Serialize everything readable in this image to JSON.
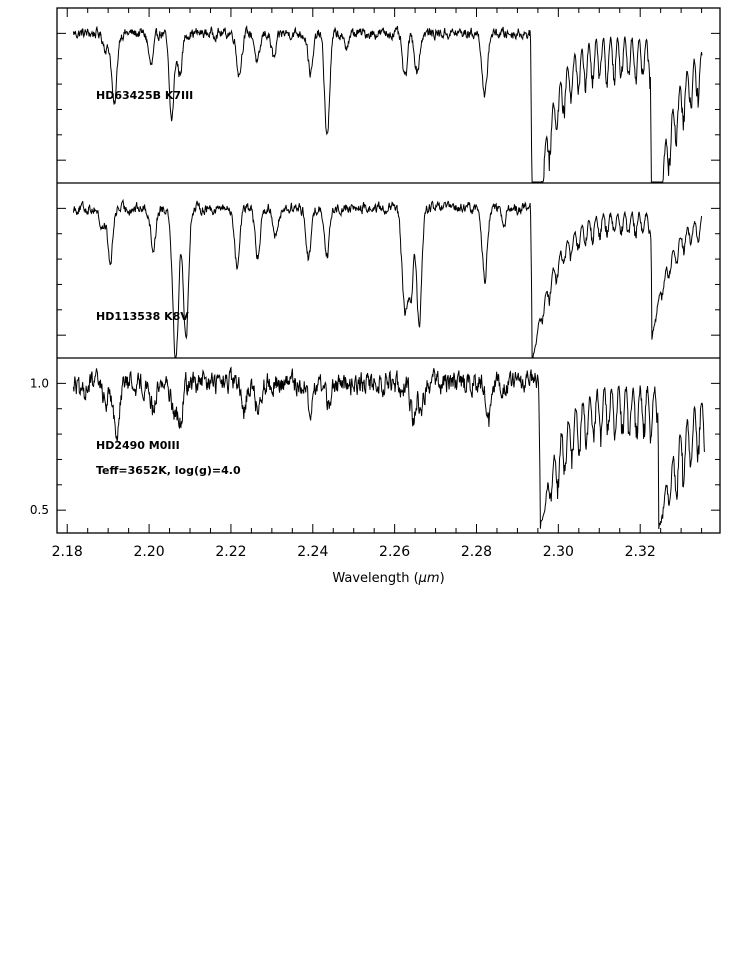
{
  "chart_data": {
    "type": "line",
    "x_axis": {
      "label": "Wavelength (μm)",
      "label_prefix": "Wavelength (",
      "label_unit": "μm",
      "label_suffix": ")",
      "range": [
        2.1775,
        2.3395
      ],
      "ticks": [
        2.18,
        2.2,
        2.22,
        2.24,
        2.26,
        2.28,
        2.3,
        2.32
      ],
      "tick_labels": [
        "2.18",
        "2.20",
        "2.22",
        "2.24",
        "2.26",
        "2.28",
        "2.30",
        "2.32"
      ]
    },
    "y_axis": {
      "range": [
        0.41,
        1.1
      ],
      "tick_values": [
        0.5,
        1.0
      ],
      "tick_labels": [
        "0.5",
        "1.0"
      ]
    },
    "panels": [
      {
        "name": "HD63425B K7III",
        "label": "HD63425B  K7III",
        "ylim": [
          0.41,
          1.1
        ],
        "continuum_fluctuation": 0.022,
        "continuum_tilt": 0.0,
        "tail_fluctuation": 0.016,
        "absorption_lines": [
          {
            "x": 2.1895,
            "depth": 0.06,
            "width": 0.0007
          },
          {
            "x": 2.1915,
            "depth": 0.29,
            "width": 0.0006
          },
          {
            "x": 2.2005,
            "depth": 0.13,
            "width": 0.0006
          },
          {
            "x": 2.2055,
            "depth": 0.34,
            "width": 0.0006
          },
          {
            "x": 2.2075,
            "depth": 0.16,
            "width": 0.0006
          },
          {
            "x": 2.222,
            "depth": 0.16,
            "width": 0.0006
          },
          {
            "x": 2.2265,
            "depth": 0.12,
            "width": 0.0006
          },
          {
            "x": 2.2305,
            "depth": 0.1,
            "width": 0.0006
          },
          {
            "x": 2.2395,
            "depth": 0.16,
            "width": 0.0006
          },
          {
            "x": 2.2435,
            "depth": 0.41,
            "width": 0.0006
          },
          {
            "x": 2.248,
            "depth": 0.05,
            "width": 0.0007
          },
          {
            "x": 2.2625,
            "depth": 0.18,
            "width": 0.0006
          },
          {
            "x": 2.2655,
            "depth": 0.15,
            "width": 0.0006
          },
          {
            "x": 2.282,
            "depth": 0.26,
            "width": 0.0006
          }
        ],
        "co_bands": [
          {
            "x": 2.2935,
            "depth": 0.9,
            "recovery": 0.0045,
            "ripple_amp": 0.16,
            "ripple_period": 0.00175
          },
          {
            "x": 2.3227,
            "depth": 0.86,
            "recovery": 0.005,
            "ripple_amp": 0.17,
            "ripple_period": 0.00175
          }
        ],
        "x_end": 2.3352
      },
      {
        "name": "HD113538 K8V",
        "label": "HD113538  K8V",
        "ylim": [
          0.41,
          1.1
        ],
        "continuum_fluctuation": 0.022,
        "continuum_tilt": 0.0,
        "tail_fluctuation": 0.016,
        "absorption_lines": [
          {
            "x": 2.1885,
            "depth": 0.08,
            "width": 0.0006
          },
          {
            "x": 2.1905,
            "depth": 0.22,
            "width": 0.0006
          },
          {
            "x": 2.201,
            "depth": 0.16,
            "width": 0.0006
          },
          {
            "x": 2.2065,
            "depth": 0.6,
            "width": 0.0007
          },
          {
            "x": 2.209,
            "depth": 0.52,
            "width": 0.0006
          },
          {
            "x": 2.2215,
            "depth": 0.23,
            "width": 0.0006
          },
          {
            "x": 2.2265,
            "depth": 0.2,
            "width": 0.0006
          },
          {
            "x": 2.231,
            "depth": 0.11,
            "width": 0.0006
          },
          {
            "x": 2.239,
            "depth": 0.2,
            "width": 0.0006
          },
          {
            "x": 2.2435,
            "depth": 0.18,
            "width": 0.0006
          },
          {
            "x": 2.2625,
            "depth": 0.4,
            "width": 0.0007
          },
          {
            "x": 2.264,
            "depth": 0.32,
            "width": 0.0006
          },
          {
            "x": 2.266,
            "depth": 0.46,
            "width": 0.0006
          },
          {
            "x": 2.282,
            "depth": 0.28,
            "width": 0.0006
          },
          {
            "x": 2.2865,
            "depth": 0.06,
            "width": 0.0006
          }
        ],
        "co_bands": [
          {
            "x": 2.2935,
            "depth": 0.62,
            "recovery": 0.0055,
            "ripple_amp": 0.08,
            "ripple_period": 0.00175
          },
          {
            "x": 2.3228,
            "depth": 0.52,
            "recovery": 0.0045,
            "ripple_amp": 0.08,
            "ripple_period": 0.00175
          }
        ],
        "x_end": 2.3352
      },
      {
        "name": "HD2490 M0III",
        "label": "HD2490  M0III",
        "sublabel": "Teff=3652K,  log(g)=4.0",
        "ylim": [
          0.41,
          1.1
        ],
        "continuum_fluctuation": 0.045,
        "continuum_tilt": 0.0,
        "tail_fluctuation": 0.03,
        "absorption_lines": [
          {
            "x": 2.1835,
            "depth": 0.06,
            "width": 0.0006
          },
          {
            "x": 2.1895,
            "depth": 0.08,
            "width": 0.0006
          },
          {
            "x": 2.192,
            "depth": 0.22,
            "width": 0.0006
          },
          {
            "x": 2.201,
            "depth": 0.1,
            "width": 0.0006
          },
          {
            "x": 2.206,
            "depth": 0.1,
            "width": 0.0006
          },
          {
            "x": 2.2075,
            "depth": 0.16,
            "width": 0.0006
          },
          {
            "x": 2.223,
            "depth": 0.12,
            "width": 0.0006
          },
          {
            "x": 2.2265,
            "depth": 0.1,
            "width": 0.0006
          },
          {
            "x": 2.2395,
            "depth": 0.12,
            "width": 0.0006
          },
          {
            "x": 2.244,
            "depth": 0.1,
            "width": 0.0006
          },
          {
            "x": 2.2645,
            "depth": 0.14,
            "width": 0.0006
          },
          {
            "x": 2.2665,
            "depth": 0.1,
            "width": 0.0006
          },
          {
            "x": 2.283,
            "depth": 0.16,
            "width": 0.0006
          }
        ],
        "co_bands": [
          {
            "x": 2.2955,
            "depth": 0.58,
            "recovery": 0.005,
            "ripple_amp": 0.18,
            "ripple_period": 0.00175
          },
          {
            "x": 2.3245,
            "depth": 0.58,
            "recovery": 0.005,
            "ripple_amp": 0.2,
            "ripple_period": 0.00175
          }
        ],
        "x_end": 2.3357
      }
    ]
  }
}
